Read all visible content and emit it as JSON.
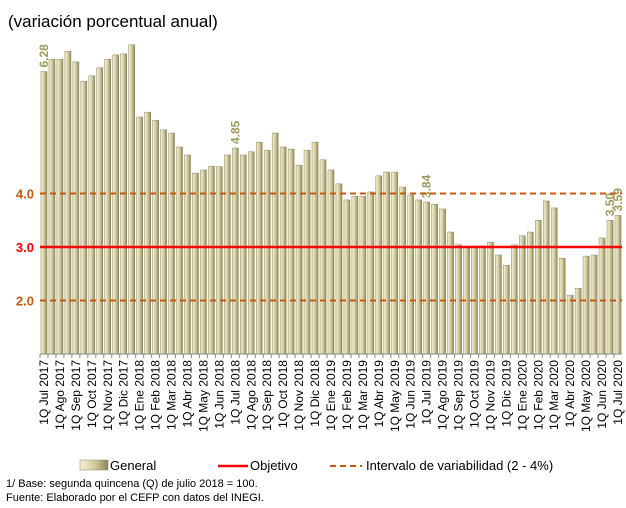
{
  "chart_data": {
    "type": "bar",
    "title": "(variación porcentual anual)",
    "categories": [
      "1Q Jul 2017",
      null,
      "1Q Ago 2017",
      null,
      "1Q Sep 2017",
      null,
      "1Q Oct 2017",
      null,
      "1Q Nov 2017",
      null,
      "1Q Dic 2017",
      null,
      "1Q Ene 2018",
      null,
      "1Q Feb 2018",
      null,
      "1Q Mar 2018",
      null,
      "1Q Abr 2018",
      null,
      "1Q May 2018",
      null,
      "1Q Jun 2018",
      null,
      "1Q Jul 2018",
      null,
      "1Q Ago 2018",
      null,
      "1Q Sep 2018",
      null,
      "1Q Oct 2018",
      null,
      "1Q Nov 2018",
      null,
      "1Q Dic 2018",
      null,
      "1Q Ene 2019",
      null,
      "1Q Feb 2019",
      null,
      "1Q Mar 2019",
      null,
      "1Q Abr 2019",
      null,
      "1Q May 2019",
      null,
      "1Q Jun 2019",
      null,
      "1Q Jul 2019",
      null,
      "1Q Ago 2019",
      null,
      "1Q Sep 2019",
      null,
      "1Q Oct 2019",
      null,
      "1Q Nov 2019",
      null,
      "1Q Dic 2019",
      null,
      "1Q Ene 2020",
      null,
      "1Q Feb 2020",
      null,
      "1Q Mar 2020",
      null,
      "1Q Abr 2020",
      null,
      "1Q May 2020",
      null,
      "1Q Jun 2020",
      null,
      "1Q Jul 2020"
    ],
    "series": [
      {
        "name": "General",
        "color": "#d6cf9f",
        "values": [
          6.28,
          6.51,
          6.51,
          6.66,
          6.46,
          6.1,
          6.2,
          6.35,
          6.51,
          6.59,
          6.61,
          6.78,
          5.43,
          5.52,
          5.37,
          5.19,
          5.13,
          4.87,
          4.72,
          4.38,
          4.44,
          4.51,
          4.5,
          4.72,
          4.85,
          4.72,
          4.78,
          4.96,
          4.81,
          5.13,
          4.87,
          4.83,
          4.53,
          4.81,
          4.96,
          4.63,
          4.44,
          4.18,
          3.88,
          3.95,
          3.95,
          4.03,
          4.33,
          4.4,
          4.4,
          4.12,
          3.97,
          3.88,
          3.84,
          3.8,
          3.71,
          3.28,
          3.04,
          3.0,
          3.02,
          3.02,
          3.09,
          2.85,
          2.66,
          3.04,
          3.21,
          3.28,
          3.5,
          3.86,
          3.73,
          2.79,
          2.1,
          2.23,
          2.83,
          2.85,
          3.17,
          3.5,
          3.59
        ],
        "value_labels": [
          "6.28",
          null,
          null,
          null,
          null,
          null,
          null,
          null,
          null,
          null,
          null,
          null,
          null,
          null,
          null,
          null,
          null,
          null,
          null,
          null,
          null,
          null,
          null,
          null,
          "4.85",
          null,
          null,
          null,
          null,
          null,
          null,
          null,
          null,
          null,
          null,
          null,
          null,
          null,
          null,
          null,
          null,
          null,
          null,
          null,
          null,
          null,
          null,
          null,
          "3.84",
          null,
          null,
          null,
          null,
          null,
          null,
          null,
          null,
          null,
          null,
          null,
          null,
          null,
          null,
          null,
          null,
          null,
          null,
          null,
          null,
          null,
          null,
          "3.50",
          "3.59"
        ]
      }
    ],
    "lines": [
      {
        "name": "Objetivo",
        "values": [
          3
        ],
        "color": "#ff0000",
        "dashed": false
      },
      {
        "name": "Intervalo de variabilidad (2 - 4%)",
        "values": [
          2,
          4
        ],
        "color": "#c55a11",
        "dashed": true
      }
    ],
    "ylim": [
      1,
      7
    ],
    "yticks": [
      {
        "value": 2,
        "label": "2.0"
      },
      {
        "value": 3,
        "label": "3.0"
      },
      {
        "value": 4,
        "label": "4.0"
      }
    ],
    "notes": [
      "1/ Base: segunda quincena (Q) de julio 2018 = 100.",
      "Fuente: Elaborado por el CEFP con  datos del INEGI."
    ]
  }
}
